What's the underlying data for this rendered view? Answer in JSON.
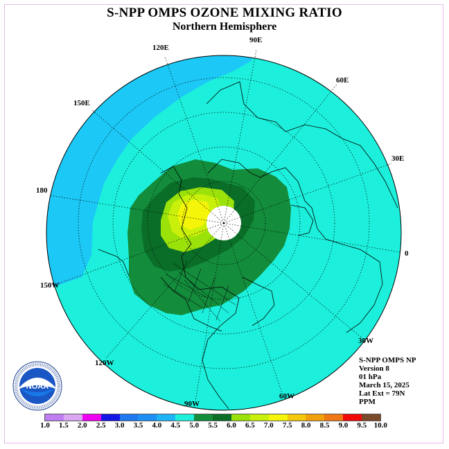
{
  "title": "S-NPP OMPS OZONE MIXING RATIO",
  "subtitle": "Northern Hemisphere",
  "longitude_labels": [
    "90E",
    "60E",
    "30E",
    "0",
    "30W",
    "60W",
    "90W",
    "120W",
    "150W",
    "180",
    "150E",
    "120E"
  ],
  "info": {
    "product": "S-NPP OMPS NP",
    "version": "Version 8",
    "level": "01 hPa",
    "date": "March 15, 2025",
    "lat_ext": "Lat Ext = 79N",
    "units": "PPM"
  },
  "logo_text": "NOAA",
  "colorbar": {
    "ticks": [
      "1.0",
      "1.5",
      "2.0",
      "2.5",
      "3.0",
      "3.5",
      "4.0",
      "4.5",
      "5.0",
      "5.5",
      "6.0",
      "6.5",
      "7.0",
      "7.5",
      "8.0",
      "8.5",
      "9.0",
      "9.5",
      "10.0"
    ],
    "colors": [
      "#bf7ff2",
      "#dba7f4",
      "#f000f0",
      "#1515e8",
      "#1e78f0",
      "#1e8ff5",
      "#1cb4f6",
      "#1cf0dc",
      "#138c3c",
      "#0a6e28",
      "#9be10a",
      "#c8f00a",
      "#f5f50a",
      "#f5c80a",
      "#f0a00a",
      "#f07814",
      "#f00a0a",
      "#7a4a2a"
    ]
  },
  "field_levels": {
    "background": "#1cf0dc",
    "low_region": "#1cc8f6",
    "contour_5_0": "#138c3c",
    "contour_5_5": "#0a6e28",
    "contour_6_0": "#9be10a",
    "contour_6_5": "#c8f00a",
    "contour_7_0": "#f5f50a",
    "missing_cap": "#ffffff"
  }
}
